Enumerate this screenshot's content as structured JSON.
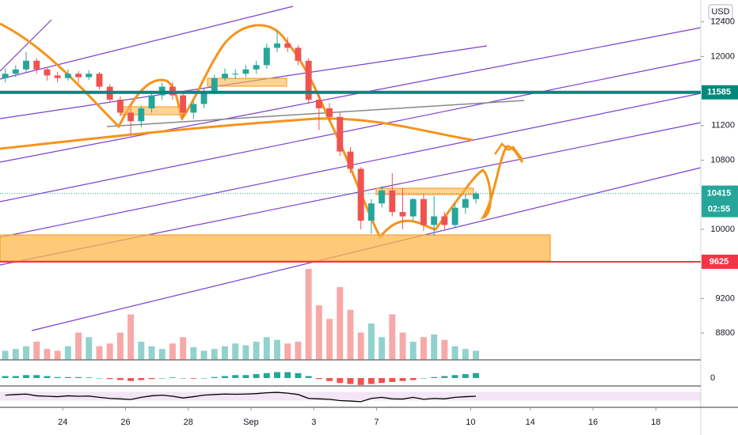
{
  "chart_data": {
    "type": "candlestick",
    "currency": "USD",
    "countdown": "02:55",
    "up_color": "#26a69a",
    "down_color": "#ef5350",
    "ylim": [
      8490,
      12653
    ],
    "yticks": [
      8800,
      9200,
      10000,
      10800,
      11200,
      12000,
      12400
    ],
    "xlim": [
      0,
      67
    ],
    "xticks": [
      {
        "value": 6,
        "label": "24"
      },
      {
        "value": 12,
        "label": "26"
      },
      {
        "value": 18,
        "label": "28"
      },
      {
        "value": 24,
        "label": "Sep"
      },
      {
        "value": 30,
        "label": "3"
      },
      {
        "value": 36,
        "label": "7"
      },
      {
        "value": 45,
        "label": "10"
      },
      {
        "value": 50.7,
        "label": "14"
      },
      {
        "value": 56.7,
        "label": "16"
      },
      {
        "value": 62.7,
        "label": "18"
      }
    ],
    "hlines": [
      {
        "value": 11585,
        "color": "#00897b"
      },
      {
        "value": 9625,
        "color": "#f23645"
      }
    ],
    "last_price": 10415,
    "open": [
      11750,
      11800,
      11850,
      11950,
      11850,
      11780,
      11750,
      11800,
      11760,
      11800,
      11650,
      11500,
      11350,
      11250,
      11400,
      11550,
      11650,
      11550,
      11350,
      11450,
      11600,
      11750,
      11800,
      11800,
      11850,
      11900,
      12100,
      12150,
      12100,
      11950,
      11500,
      11400,
      11300,
      10900,
      10700,
      10100,
      10300,
      10450,
      10200,
      10150,
      10350,
      10050,
      10150,
      10050,
      10250,
      10350
    ],
    "high": [
      11860,
      11900,
      12050,
      11980,
      11880,
      11820,
      11850,
      11830,
      11840,
      11820,
      11680,
      11540,
      11400,
      11430,
      11580,
      11700,
      11700,
      11580,
      11480,
      11640,
      11790,
      11860,
      11850,
      11900,
      11950,
      12150,
      12300,
      12220,
      12130,
      11980,
      11560,
      11460,
      11350,
      10950,
      10720,
      10350,
      10500,
      10650,
      10480,
      10360,
      10400,
      10390,
      10200,
      10300,
      10400,
      10440
    ],
    "low": [
      11700,
      11760,
      11820,
      11800,
      11720,
      11700,
      11720,
      11700,
      11730,
      11620,
      11470,
      11310,
      11100,
      11180,
      11350,
      11500,
      11500,
      11300,
      11280,
      11400,
      11560,
      11720,
      11740,
      11760,
      11800,
      11860,
      12050,
      12050,
      11900,
      11450,
      11150,
      11250,
      10850,
      10650,
      10000,
      9950,
      10250,
      10150,
      10000,
      10100,
      9980,
      9920,
      10000,
      10020,
      10180,
      10300
    ],
    "close": [
      11800,
      11850,
      11950,
      11850,
      11780,
      11750,
      11800,
      11760,
      11800,
      11650,
      11500,
      11350,
      11250,
      11400,
      11550,
      11650,
      11550,
      11350,
      11450,
      11600,
      11750,
      11800,
      11800,
      11850,
      11900,
      12100,
      12150,
      12100,
      11950,
      11500,
      11400,
      11300,
      10900,
      10700,
      10100,
      10300,
      10450,
      10200,
      10150,
      10350,
      10050,
      10150,
      10050,
      10250,
      10350,
      10415
    ],
    "volume_lim": [
      0,
      100
    ],
    "volume": [
      10,
      12,
      15,
      20,
      12,
      10,
      15,
      30,
      25,
      15,
      18,
      30,
      50,
      20,
      15,
      12,
      18,
      25,
      14,
      10,
      12,
      15,
      18,
      16,
      20,
      25,
      22,
      18,
      20,
      100,
      60,
      45,
      80,
      55,
      30,
      40,
      25,
      50,
      30,
      20,
      25,
      28,
      22,
      15,
      12,
      10
    ],
    "macd_lim": [
      -6,
      6
    ],
    "macd_ticks": [
      0
    ],
    "macd": [
      1,
      1,
      1.5,
      1.5,
      1,
      0.5,
      0.5,
      0.5,
      0.3,
      0,
      -0.5,
      -1,
      -1.5,
      -1,
      -0.5,
      0,
      0.3,
      0,
      -0.3,
      0,
      0.5,
      1,
      1.5,
      1.5,
      2,
      2.5,
      3,
      3,
      2.5,
      1,
      -0.5,
      -1.5,
      -2.5,
      -3,
      -3.5,
      -3,
      -2.5,
      -2,
      -1.5,
      -1,
      0,
      0.5,
      1,
      1.5,
      2,
      2.5
    ],
    "rsi_lim": [
      10,
      90
    ],
    "rsi": [
      55,
      58,
      60,
      52,
      50,
      48,
      52,
      50,
      51,
      45,
      40,
      38,
      35,
      45,
      52,
      55,
      50,
      42,
      48,
      55,
      58,
      60,
      59,
      60,
      62,
      66,
      68,
      64,
      58,
      40,
      38,
      36,
      30,
      28,
      25,
      40,
      45,
      38,
      37,
      45,
      36,
      40,
      38,
      45,
      48,
      50
    ]
  }
}
